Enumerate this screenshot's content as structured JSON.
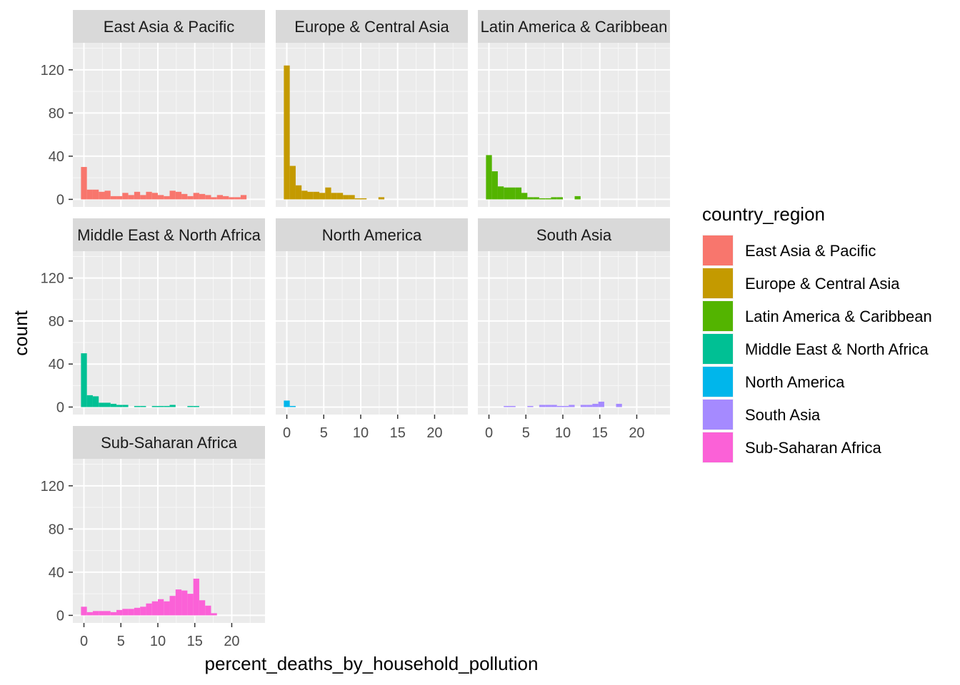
{
  "chart_data": {
    "type": "histogram",
    "xlabel": "percent_deaths_by_household_pollution",
    "ylabel": "count",
    "xlim": [
      -1.5,
      24.5
    ],
    "ylim": [
      -7,
      145
    ],
    "x_ticks": [
      "0",
      "5",
      "10",
      "15",
      "20"
    ],
    "y_ticks": [
      "0",
      "40",
      "80",
      "120"
    ],
    "bin_width": 0.8,
    "bin_start": -0.4,
    "grid": true,
    "legend_title": "country_region",
    "legend_position": "right",
    "panels": [
      {
        "name": "East Asia & Pacific",
        "color": "#F8766D",
        "counts": [
          30,
          9,
          9,
          7,
          8,
          3,
          3,
          6,
          4,
          7,
          4,
          7,
          6,
          4,
          3,
          8,
          7,
          5,
          3,
          6,
          5,
          4,
          2,
          4,
          3,
          2,
          2,
          4
        ]
      },
      {
        "name": "Europe & Central Asia",
        "color": "#C49A00",
        "counts": [
          124,
          31,
          13,
          8,
          7,
          7,
          6,
          11,
          6,
          6,
          4,
          4,
          1,
          1,
          0,
          0,
          2
        ]
      },
      {
        "name": "Latin America & Caribbean",
        "color": "#53B400",
        "counts": [
          41,
          26,
          12,
          11,
          11,
          11,
          6,
          2,
          2,
          1,
          1,
          2,
          2,
          0,
          0,
          3
        ]
      },
      {
        "name": "Middle East & North Africa",
        "color": "#00C094",
        "counts": [
          50,
          11,
          10,
          4,
          4,
          3,
          2,
          2,
          0,
          1,
          1,
          0,
          1,
          1,
          1,
          2,
          0,
          0,
          1,
          1
        ]
      },
      {
        "name": "North America",
        "color": "#00B6EB",
        "counts": [
          6,
          1
        ]
      },
      {
        "name": "South Asia",
        "color": "#A58AFF",
        "counts": [
          0,
          0,
          0,
          1,
          1,
          0,
          0,
          1,
          0,
          2,
          2,
          2,
          1,
          1,
          2,
          0,
          2,
          2,
          3,
          5,
          0,
          0,
          3
        ]
      },
      {
        "name": "Sub-Saharan Africa",
        "color": "#FB61D7",
        "counts": [
          8,
          3,
          4,
          4,
          4,
          3,
          5,
          6,
          6,
          7,
          8,
          11,
          13,
          15,
          13,
          18,
          24,
          23,
          20,
          34,
          14,
          9,
          2
        ]
      }
    ]
  }
}
